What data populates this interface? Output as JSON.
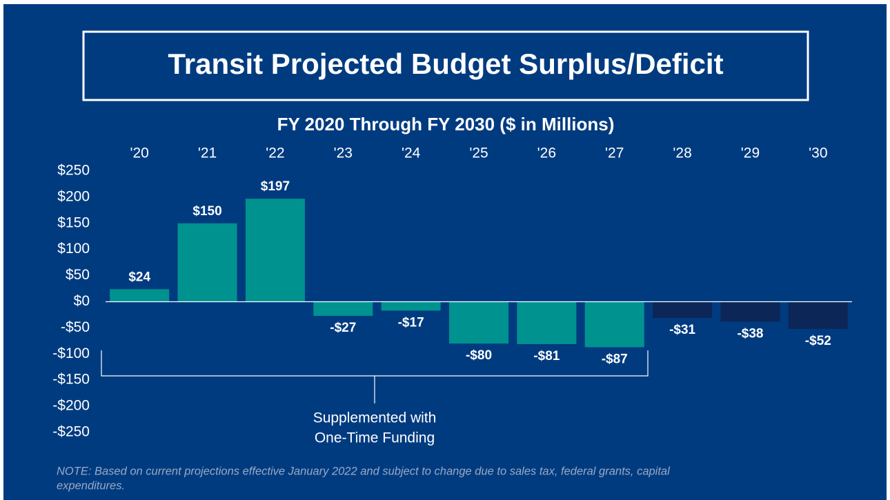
{
  "chart_data": {
    "type": "bar",
    "title": "Transit Projected Budget Surplus/Deficit",
    "subtitle": "FY 2020 Through FY 2030 ($ in Millions)",
    "categories": [
      "'20",
      "'21",
      "'22",
      "'23",
      "'24",
      "'25",
      "'26",
      "'27",
      "'28",
      "'29",
      "'30"
    ],
    "values": [
      24,
      150,
      197,
      -27,
      -17,
      -80,
      -81,
      -87,
      -31,
      -38,
      -52
    ],
    "value_labels": [
      "$24",
      "$150",
      "$197",
      "-$27",
      "-$17",
      "-$80",
      "-$81",
      "-$87",
      "-$31",
      "-$38",
      "-$52"
    ],
    "colors": [
      "#00928f",
      "#00928f",
      "#00928f",
      "#00928f",
      "#00928f",
      "#00928f",
      "#00928f",
      "#00928f",
      "#0b2657",
      "#0b2657",
      "#0b2657"
    ],
    "ylim": [
      -250,
      250
    ],
    "yticks": [
      {
        "value": 250,
        "label": "$250"
      },
      {
        "value": 200,
        "label": "$200"
      },
      {
        "value": 150,
        "label": "$150"
      },
      {
        "value": 100,
        "label": "$100"
      },
      {
        "value": 50,
        "label": "$50"
      },
      {
        "value": 0,
        "label": "$0"
      },
      {
        "value": -50,
        "label": "-$50"
      },
      {
        "value": -100,
        "label": "-$100"
      },
      {
        "value": -150,
        "label": "-$150"
      },
      {
        "value": -200,
        "label": "-$200"
      },
      {
        "value": -250,
        "label": "-$250"
      }
    ],
    "grid": false,
    "annotation": [
      "Supplemented with",
      "One-Time Funding"
    ],
    "note": [
      "NOTE: Based on current projections effective January 2022 and subject to change due to sales tax, federal grants, capital",
      "expenditures."
    ]
  }
}
